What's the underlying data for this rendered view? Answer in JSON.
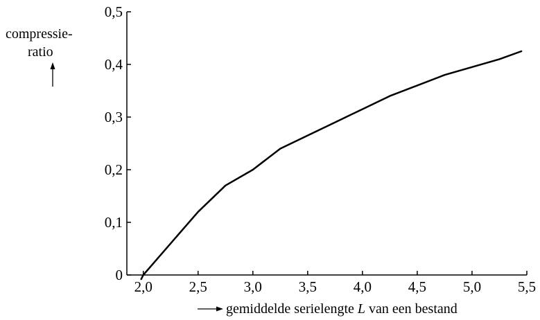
{
  "chart_data": {
    "type": "line",
    "title": "",
    "ylabel_line1": "compressie-",
    "ylabel_line2": "ratio",
    "xlabel_prefix": "gemiddelde serielengte ",
    "xlabel_var": "L",
    "xlabel_suffix": " van een bestand",
    "xlim": [
      1.85,
      5.5
    ],
    "ylim": [
      0,
      0.5
    ],
    "x_ticks": [
      2.0,
      2.5,
      3.0,
      3.5,
      4.0,
      4.5,
      5.0,
      5.5
    ],
    "x_tick_labels": [
      "2,0",
      "2,5",
      "3,0",
      "3,5",
      "4,0",
      "4,5",
      "5,0",
      "5,5"
    ],
    "y_ticks": [
      0,
      0.1,
      0.2,
      0.3,
      0.4,
      0.5
    ],
    "y_tick_labels": [
      "0",
      "0,1",
      "0,2",
      "0,3",
      "0,4",
      "0,5"
    ],
    "grid": false,
    "series": [
      {
        "x": [
          2.0,
          2.25,
          2.5,
          2.75,
          3.0,
          3.25,
          3.5,
          3.75,
          4.0,
          4.25,
          4.5,
          4.75,
          5.0,
          5.25,
          5.45
        ],
        "y": [
          0.0,
          0.06,
          0.12,
          0.17,
          0.2,
          0.24,
          0.265,
          0.29,
          0.315,
          0.34,
          0.36,
          0.38,
          0.395,
          0.41,
          0.425
        ]
      }
    ]
  }
}
